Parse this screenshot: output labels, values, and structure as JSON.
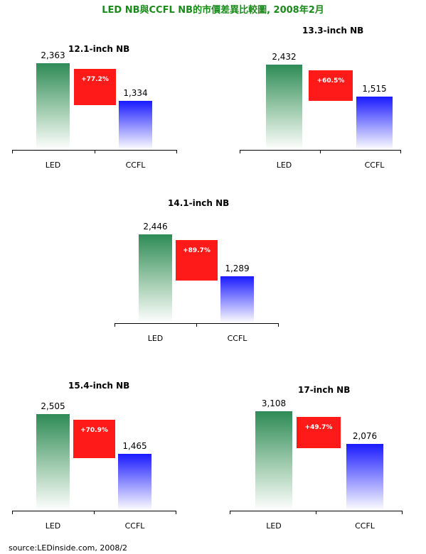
{
  "title": "LED NB與CCFL NB的市價差異比較圖, 2008年2月",
  "source": "source:LEDinside.com, 2008/2",
  "colors": {
    "title": "#1a8a1a",
    "led": "#2e8b57",
    "ccfl": "#1a1aff",
    "diff": "#ff1a1a"
  },
  "chart_data": [
    {
      "type": "bar",
      "title": "12.1-inch NB",
      "categories": [
        "LED",
        "CCFL"
      ],
      "values": [
        2363,
        1334
      ],
      "value_labels": [
        "2,363",
        "1,334"
      ],
      "diff_label": "+77.2%"
    },
    {
      "type": "bar",
      "title": "13.3-inch NB",
      "categories": [
        "LED",
        "CCFL"
      ],
      "values": [
        2432,
        1515
      ],
      "value_labels": [
        "2,432",
        "1,515"
      ],
      "diff_label": "+60.5%"
    },
    {
      "type": "bar",
      "title": "14.1-inch NB",
      "categories": [
        "LED",
        "CCFL"
      ],
      "values": [
        2446,
        1289
      ],
      "value_labels": [
        "2,446",
        "1,289"
      ],
      "diff_label": "+89.7%"
    },
    {
      "type": "bar",
      "title": "15.4-inch NB",
      "categories": [
        "LED",
        "CCFL"
      ],
      "values": [
        2505,
        1465
      ],
      "value_labels": [
        "2,505",
        "1,465"
      ],
      "diff_label": "+70.9%"
    },
    {
      "type": "bar",
      "title": "17-inch NB",
      "categories": [
        "LED",
        "CCFL"
      ],
      "values": [
        3108,
        2076
      ],
      "value_labels": [
        "3,108",
        "2,076"
      ],
      "diff_label": "+49.7%"
    }
  ]
}
